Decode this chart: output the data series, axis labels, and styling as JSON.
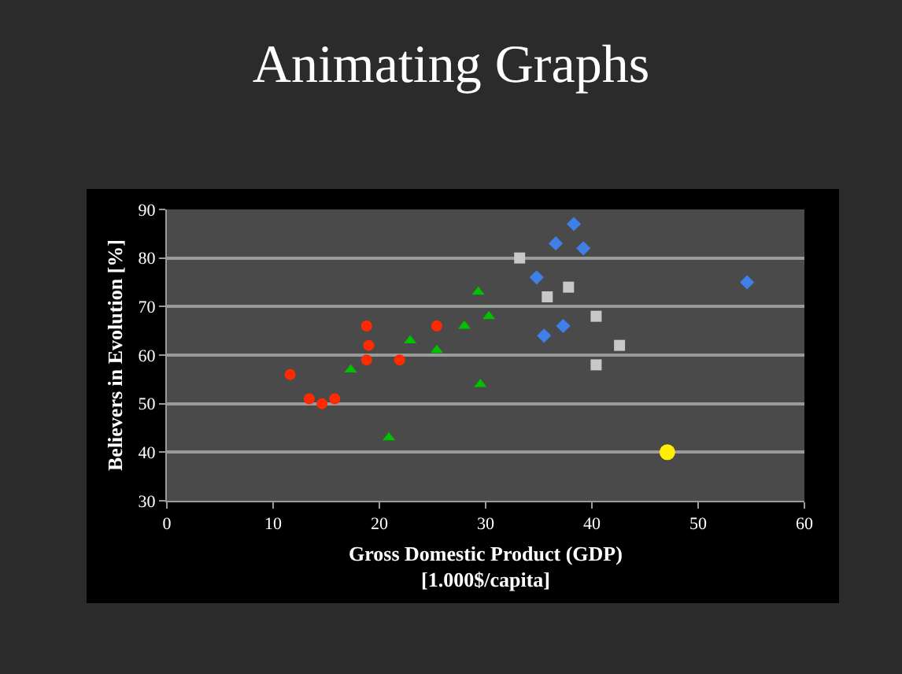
{
  "chart_data": {
    "type": "scatter",
    "title": "Animating Graphs",
    "xlabel": "Gross Domestic Product (GDP)\n[1.000$/capita]",
    "ylabel": "Believers in Evolution [%]",
    "xlim": [
      0,
      60
    ],
    "xticks": [
      0,
      10,
      20,
      30,
      40,
      50,
      60
    ],
    "ylim": [
      30,
      90
    ],
    "yticks": [
      30,
      40,
      50,
      60,
      70,
      80,
      90
    ],
    "grid": "y",
    "series": [
      {
        "color": "#ff2a00",
        "marker": "circle",
        "x": [
          11.6,
          13.4,
          14.6,
          15.8,
          18.8,
          19.0,
          18.8,
          21.9,
          25.4
        ],
        "values": [
          56,
          51,
          50,
          51,
          66,
          62,
          59,
          59,
          66
        ]
      },
      {
        "color": "#00c000",
        "marker": "triangle",
        "x": [
          17.3,
          20.9,
          22.9,
          25.4,
          28.0,
          29.3,
          30.3,
          29.5
        ],
        "values": [
          57,
          43,
          63,
          61,
          66,
          73,
          68,
          54
        ]
      },
      {
        "color": "#3f7fe8",
        "marker": "diamond",
        "x": [
          38.3,
          36.6,
          39.2,
          34.8,
          54.6,
          37.3,
          35.5
        ],
        "values": [
          87,
          83,
          82,
          76,
          75,
          66,
          64
        ]
      },
      {
        "color": "#c8c8c8",
        "marker": "square",
        "x": [
          33.2,
          37.8,
          35.8,
          40.4,
          42.6,
          40.4
        ],
        "values": [
          80,
          74,
          72,
          68,
          62,
          58
        ]
      },
      {
        "color": "#ffee00",
        "marker": "circle",
        "x": [
          47.1
        ],
        "values": [
          40
        ]
      }
    ]
  }
}
